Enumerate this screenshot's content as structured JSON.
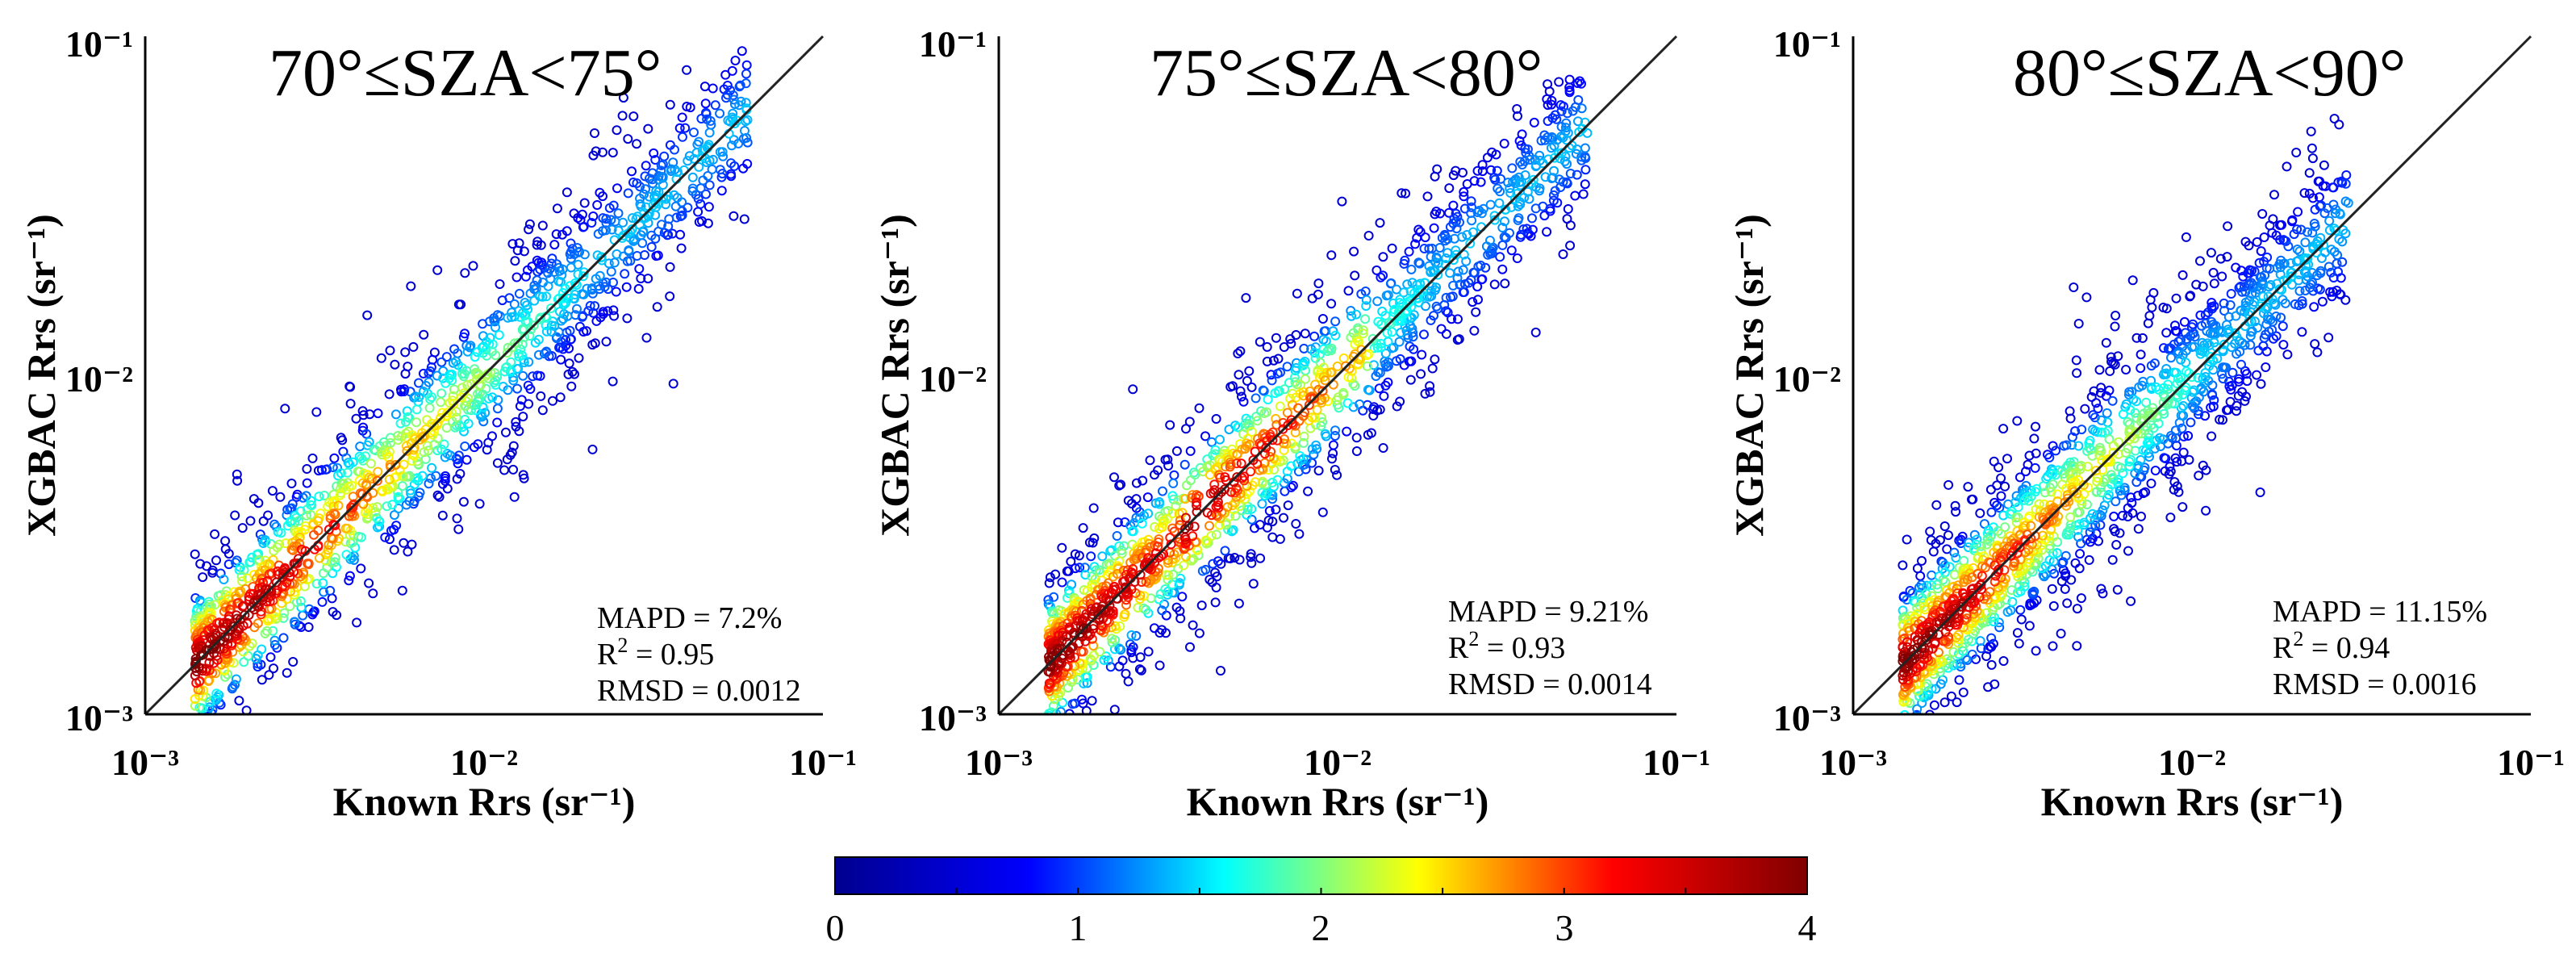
{
  "colormap": {
    "name": "jet",
    "stops": [
      "#00008f",
      "#0000ff",
      "#00ffff",
      "#ffff00",
      "#ff0000",
      "#800000"
    ]
  },
  "colorbar": {
    "min": 0,
    "max": 4,
    "tick_labels": [
      "0",
      "1",
      "2",
      "3",
      "4"
    ]
  },
  "chart_data": [
    {
      "type": "scatter",
      "title": "70°≤SZA<75°",
      "xlabel": "Known Rrs (sr⁻¹)",
      "ylabel": "XGBAC Rrs (sr⁻¹)",
      "xscale": "log",
      "yscale": "log",
      "xlim": [
        0.001,
        0.1
      ],
      "ylim": [
        0.001,
        0.1
      ],
      "x_tick_labels": [
        "10⁻³",
        "10⁻²",
        "10⁻¹"
      ],
      "y_tick_labels": [
        "10⁻³",
        "10⁻²",
        "10⁻¹"
      ],
      "one_to_one_line": true,
      "color_metric": "point density (0–4)",
      "x_data_range": [
        0.0014,
        0.06
      ],
      "stats": {
        "mapd": "MAPD = 7.2%",
        "r2_prefix": "R",
        "r2_sup": "2",
        "r2_value": " = 0.95",
        "rmsd": "RMSD = 0.0012"
      }
    },
    {
      "type": "scatter",
      "title": "75°≤SZA<80°",
      "xlabel": "Known Rrs (sr⁻¹)",
      "ylabel": "XGBAC Rrs (sr⁻¹)",
      "xscale": "log",
      "yscale": "log",
      "xlim": [
        0.001,
        0.1
      ],
      "ylim": [
        0.001,
        0.1
      ],
      "x_tick_labels": [
        "10⁻³",
        "10⁻²",
        "10⁻¹"
      ],
      "y_tick_labels": [
        "10⁻³",
        "10⁻²",
        "10⁻¹"
      ],
      "one_to_one_line": true,
      "color_metric": "point density (0–4)",
      "x_data_range": [
        0.0014,
        0.055
      ],
      "stats": {
        "mapd": "MAPD = 9.21%",
        "r2_prefix": "R",
        "r2_sup": "2",
        "r2_value": " = 0.93",
        "rmsd": "RMSD = 0.0014"
      }
    },
    {
      "type": "scatter",
      "title": "80°≤SZA<90°",
      "xlabel": "Known Rrs (sr⁻¹)",
      "ylabel": "XGBAC Rrs (sr⁻¹)",
      "xscale": "log",
      "yscale": "log",
      "xlim": [
        0.001,
        0.1
      ],
      "ylim": [
        0.001,
        0.1
      ],
      "x_tick_labels": [
        "10⁻³",
        "10⁻²",
        "10⁻¹"
      ],
      "y_tick_labels": [
        "10⁻³",
        "10⁻²",
        "10⁻¹"
      ],
      "one_to_one_line": true,
      "color_metric": "point density (0–4)",
      "x_data_range": [
        0.0014,
        0.029
      ],
      "stats": {
        "mapd": "MAPD = 11.15%",
        "r2_prefix": "R",
        "r2_sup": "2",
        "r2_value": " = 0.94",
        "rmsd": "RMSD = 0.0016"
      }
    }
  ]
}
